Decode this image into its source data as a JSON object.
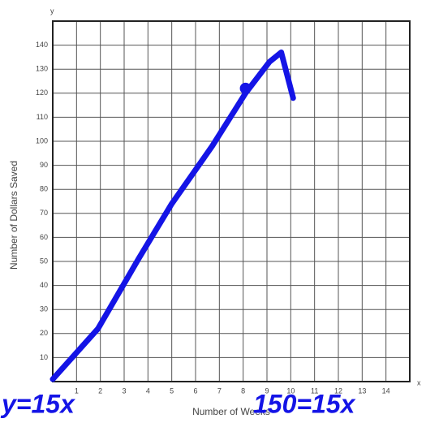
{
  "chart_data": {
    "type": "line",
    "x_label": "Number of Weeks",
    "y_label": "Number of Dollars Saved",
    "x_axis_letter": "x",
    "y_axis_letter": "y",
    "annotations": [
      "y=15x",
      "150=15x"
    ],
    "x": [
      0,
      1.9,
      3.6,
      5,
      6.7,
      8.1,
      9.1,
      9.6,
      10.1
    ],
    "series": [
      {
        "color": "#1414e6",
        "values": [
          1,
          22,
          51,
          74,
          98,
          120,
          133,
          137,
          118
        ]
      }
    ],
    "points": {
      "x": [
        8.1
      ],
      "values": [
        122
      ]
    },
    "xlim": [
      0,
      15
    ],
    "ylim": [
      0,
      150
    ],
    "xticks": [
      1,
      2,
      3,
      4,
      5,
      6,
      7,
      8,
      9,
      10,
      11,
      12,
      13,
      14
    ],
    "yticks": [
      10,
      20,
      30,
      40,
      50,
      60,
      70,
      80,
      90,
      100,
      110,
      120,
      130,
      140
    ],
    "grid": true
  }
}
